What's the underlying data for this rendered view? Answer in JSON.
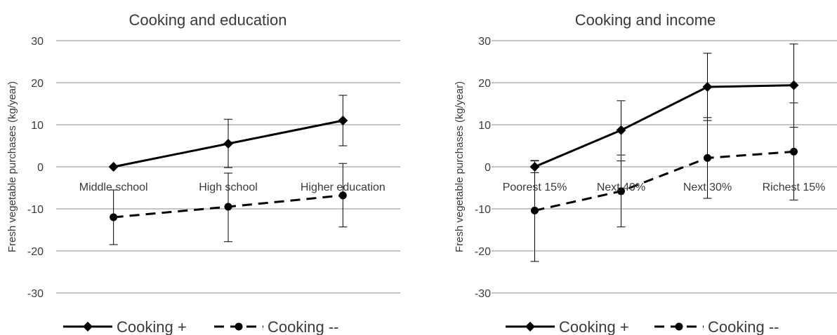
{
  "chart_data": [
    {
      "type": "line",
      "title": "Cooking and education",
      "ylabel": "Fresh vegetable purchases (kg/year)",
      "xlabel": "",
      "ylim": [
        -30,
        30
      ],
      "yticks": [
        30,
        20,
        10,
        0,
        -10,
        -20,
        -30
      ],
      "grid": true,
      "legend_position": "bottom",
      "categories": [
        "Middle school",
        "High school",
        "Higher education"
      ],
      "series": [
        {
          "name": "Cooking +",
          "marker": "diamond",
          "line_style": "solid",
          "values": [
            0,
            5.5,
            11
          ],
          "error_low": [
            null,
            -0.2,
            5
          ],
          "error_high": [
            null,
            11.3,
            17
          ]
        },
        {
          "name": "Cooking --",
          "marker": "circle",
          "line_style": "dashed",
          "values": [
            -12,
            -9.5,
            -6.8
          ],
          "error_low": [
            -18.5,
            -17.8,
            -14.3
          ],
          "error_high": [
            -5.5,
            -1.5,
            0.8
          ]
        }
      ]
    },
    {
      "type": "line",
      "title": "Cooking and income",
      "ylabel": "Fresh vegetable purchases (kg/year)",
      "xlabel": "",
      "ylim": [
        -30,
        30
      ],
      "yticks": [
        30,
        20,
        10,
        0,
        -10,
        -20,
        -30
      ],
      "grid": true,
      "legend_position": "bottom",
      "categories": [
        "Poorest 15%",
        "Next 40%",
        "Next 30%",
        "Richest 15%"
      ],
      "series": [
        {
          "name": "Cooking +",
          "marker": "diamond",
          "line_style": "solid",
          "values": [
            0,
            8.7,
            19,
            19.4
          ],
          "error_low": [
            -1.4,
            1.4,
            11,
            9.4
          ],
          "error_high": [
            1.4,
            15.7,
            27,
            29.2
          ]
        },
        {
          "name": "Cooking --",
          "marker": "circle",
          "line_style": "dashed",
          "values": [
            -10.4,
            -5.8,
            2.1,
            3.6
          ],
          "error_low": [
            -22.5,
            -14.3,
            -7.5,
            -7.9
          ],
          "error_high": [
            1.5,
            2.8,
            11.7,
            15.2
          ]
        }
      ]
    }
  ]
}
